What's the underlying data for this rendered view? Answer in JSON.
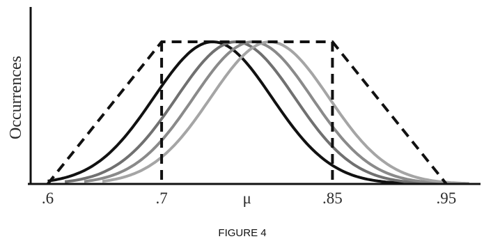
{
  "figure": {
    "caption": "FIGURE 4"
  },
  "chart_data": {
    "type": "line",
    "ylabel": "Occurrences",
    "xlabel": "",
    "x_ticks": [
      {
        "value": 0.6,
        "label": ".6"
      },
      {
        "value": 0.7,
        "label": ".7"
      },
      {
        "value": 0.775,
        "label": "μ"
      },
      {
        "value": 0.85,
        "label": ".85"
      },
      {
        "value": 0.95,
        "label": ".95"
      }
    ],
    "xlim": [
      0.585,
      0.98
    ],
    "ylim": [
      0,
      1.0
    ],
    "grid": false,
    "legend": "none",
    "trapezoid": {
      "style": "dashed",
      "color": "#111111",
      "points": [
        [
          0.6,
          0
        ],
        [
          0.7,
          1
        ],
        [
          0.85,
          1
        ],
        [
          0.95,
          0
        ]
      ],
      "vertical_lines_at": [
        0.7,
        0.85
      ]
    },
    "series": [
      {
        "color": "#111111",
        "mu": 0.745,
        "sigma": 0.052,
        "x_range": [
          0.6,
          0.925
        ]
      },
      {
        "color": "#707070",
        "mu": 0.765,
        "sigma": 0.052,
        "x_range": [
          0.615,
          0.94
        ]
      },
      {
        "color": "#8a8a8a",
        "mu": 0.78,
        "sigma": 0.052,
        "x_range": [
          0.632,
          0.955
        ]
      },
      {
        "color": "#a5a5a5",
        "mu": 0.795,
        "sigma": 0.052,
        "x_range": [
          0.648,
          0.97
        ]
      }
    ]
  }
}
